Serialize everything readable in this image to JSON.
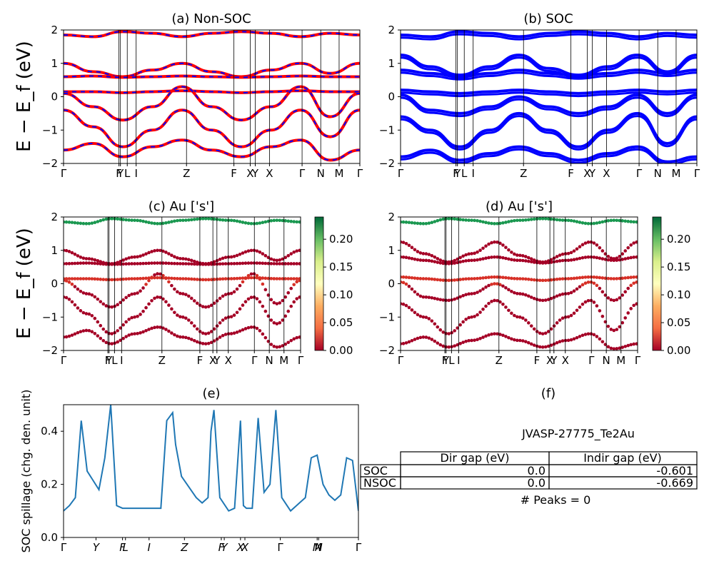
{
  "figure": {
    "material": "JVASP-27775_Te2Au"
  },
  "panels": {
    "a": {
      "title": "(a) Non-SOC"
    },
    "b": {
      "title": "(b) SOC"
    },
    "c": {
      "title": "(c)  Au ['s']"
    },
    "d": {
      "title": "(d) Au ['s']"
    },
    "e": {
      "title": "(e)"
    },
    "f": {
      "title": "(f)"
    }
  },
  "band_ylabel": "E − E_f (eV)",
  "band_yticks": [
    "2",
    "1",
    "0",
    "−1",
    "−2"
  ],
  "kpath_labels": [
    {
      "text": "Γ",
      "pos": 0.0
    },
    {
      "text": "Y",
      "pos": 0.192
    },
    {
      "text": "F",
      "pos": 0.187
    },
    {
      "text": "L",
      "pos": 0.215
    },
    {
      "text": "I",
      "pos": 0.245
    },
    {
      "text": "Z",
      "pos": 0.415
    },
    {
      "text": "F",
      "pos": 0.575
    },
    {
      "text": "X",
      "pos": 0.63
    },
    {
      "text": "Y",
      "pos": 0.647
    },
    {
      "text": "X",
      "pos": 0.695
    },
    {
      "text": "Γ",
      "pos": 0.805
    },
    {
      "text": "N",
      "pos": 0.868
    },
    {
      "text": "M",
      "pos": 0.93
    },
    {
      "text": "Γ",
      "pos": 1.0
    }
  ],
  "colorbar": {
    "ticks": [
      "0.20",
      "0.15",
      "0.10",
      "0.05",
      "0.00"
    ],
    "cmap": [
      "#006837",
      "#66bd63",
      "#d9ef8b",
      "#ffffbf",
      "#fdae61",
      "#f46d43",
      "#a50026"
    ]
  },
  "colors": {
    "nonsoc_line": "#ff0000",
    "nonsoc_dash": "#0000ff",
    "soc_line": "#0000ff",
    "spillage_line": "#1f77b4"
  },
  "spillage": {
    "ylabel": "SOC spillage (chg. den. unit)",
    "yticks": [
      "0.4",
      "0.2",
      "0.0"
    ],
    "xticks": [
      "Γ",
      "Y",
      "F",
      "L",
      "I",
      "Z",
      "F",
      "Y",
      "X",
      "X",
      "Γ",
      "M",
      "N",
      "Γ"
    ]
  },
  "table": {
    "headers": [
      "Dir gap (eV)",
      "Indir gap (eV)"
    ],
    "rows": [
      {
        "label": "SOC",
        "dir": "0.0",
        "indir": "-0.601"
      },
      {
        "label": "NSOC",
        "dir": "0.0",
        "indir": "-0.669"
      }
    ],
    "peaks": "# Peaks = 0"
  },
  "chart_data": [
    {
      "type": "line",
      "title": "(a) Non-SOC",
      "ylabel": "E − E_f (eV)",
      "ylim": [
        -2,
        2
      ],
      "x": [
        0,
        0.1,
        0.2,
        0.3,
        0.4,
        0.5,
        0.6,
        0.7,
        0.8,
        0.9,
        1.0
      ],
      "series": [
        {
          "values": [
            1.0,
            0.75,
            0.6,
            0.8,
            1.0,
            0.75,
            0.6,
            0.8,
            1.0,
            0.7,
            1.0
          ]
        },
        {
          "values": [
            0.6,
            0.62,
            0.58,
            0.6,
            0.62,
            0.6,
            0.58,
            0.6,
            0.62,
            0.6,
            0.6
          ]
        },
        {
          "values": [
            0.15,
            0.15,
            0.12,
            0.15,
            0.18,
            0.15,
            0.12,
            0.15,
            0.18,
            0.15,
            0.15
          ]
        },
        {
          "values": [
            0.1,
            -0.3,
            -0.7,
            -0.3,
            0.3,
            -0.3,
            -0.7,
            -0.3,
            0.3,
            -0.6,
            0.1
          ]
        },
        {
          "values": [
            -0.4,
            -0.9,
            -1.5,
            -1.0,
            -0.4,
            -1.0,
            -1.5,
            -1.0,
            -0.4,
            -1.2,
            -0.4
          ]
        },
        {
          "values": [
            -1.6,
            -1.4,
            -1.8,
            -1.5,
            -1.3,
            -1.6,
            -1.8,
            -1.5,
            -1.3,
            -1.9,
            -1.6
          ]
        },
        {
          "values": [
            1.85,
            1.8,
            1.95,
            1.9,
            1.8,
            1.9,
            1.95,
            1.9,
            1.8,
            1.9,
            1.85
          ]
        }
      ]
    },
    {
      "type": "line",
      "title": "(b) SOC",
      "ylabel": "",
      "ylim": [
        -2,
        2
      ],
      "x": [
        0,
        0.1,
        0.2,
        0.3,
        0.4,
        0.5,
        0.6,
        0.7,
        0.8,
        0.9,
        1.0
      ],
      "series": [
        {
          "values": [
            1.25,
            0.9,
            0.65,
            0.9,
            1.25,
            0.85,
            0.65,
            0.9,
            1.25,
            0.75,
            1.25
          ]
        },
        {
          "values": [
            0.8,
            0.7,
            0.6,
            0.7,
            0.8,
            0.7,
            0.62,
            0.7,
            0.8,
            0.7,
            0.8
          ]
        },
        {
          "values": [
            0.2,
            0.15,
            0.1,
            0.15,
            0.2,
            0.15,
            0.1,
            0.15,
            0.2,
            0.15,
            0.2
          ]
        },
        {
          "values": [
            0.05,
            -0.4,
            -0.5,
            -0.3,
            0.0,
            -0.3,
            -0.5,
            -0.3,
            0.05,
            -0.5,
            0.05
          ]
        },
        {
          "values": [
            -0.6,
            -1.0,
            -1.5,
            -1.0,
            -0.5,
            -1.0,
            -1.5,
            -1.0,
            -0.5,
            -1.4,
            -0.6
          ]
        },
        {
          "values": [
            -1.8,
            -1.6,
            -1.9,
            -1.7,
            -1.5,
            -1.7,
            -1.9,
            -1.7,
            -1.5,
            -1.95,
            -1.8
          ]
        },
        {
          "values": [
            1.85,
            1.8,
            1.95,
            1.9,
            1.8,
            1.9,
            1.95,
            1.9,
            1.8,
            1.9,
            1.85
          ]
        }
      ]
    },
    {
      "type": "scatter",
      "title": "(c)  Au ['s']",
      "ylim": [
        -2,
        2
      ],
      "colorbar_range": [
        0,
        0.24
      ]
    },
    {
      "type": "scatter",
      "title": "(d) Au ['s']",
      "ylim": [
        -2,
        2
      ],
      "colorbar_range": [
        0,
        0.24
      ]
    },
    {
      "type": "line",
      "title": "(e)",
      "ylabel": "SOC spillage (chg. den. unit)",
      "ylim": [
        0,
        0.5
      ],
      "x": [
        0,
        0.02,
        0.04,
        0.06,
        0.08,
        0.12,
        0.14,
        0.16,
        0.18,
        0.2,
        0.25,
        0.3,
        0.33,
        0.35,
        0.37,
        0.38,
        0.4,
        0.45,
        0.47,
        0.49,
        0.5,
        0.51,
        0.53,
        0.56,
        0.58,
        0.6,
        0.61,
        0.62,
        0.64,
        0.66,
        0.68,
        0.7,
        0.72,
        0.74,
        0.77,
        0.79,
        0.8,
        0.82,
        0.84,
        0.86,
        0.88,
        0.9,
        0.92,
        0.94,
        0.96,
        0.98,
        1.0
      ],
      "series": [
        {
          "name": "",
          "values": [
            0.1,
            0.12,
            0.15,
            0.44,
            0.25,
            0.18,
            0.3,
            0.5,
            0.12,
            0.11,
            0.11,
            0.11,
            0.11,
            0.44,
            0.47,
            0.35,
            0.23,
            0.15,
            0.13,
            0.15,
            0.4,
            0.48,
            0.15,
            0.1,
            0.11,
            0.44,
            0.12,
            0.11,
            0.11,
            0.45,
            0.17,
            0.2,
            0.48,
            0.15,
            0.1,
            0.12,
            0.13,
            0.15,
            0.3,
            0.31,
            0.2,
            0.16,
            0.14,
            0.16,
            0.3,
            0.29,
            0.1
          ]
        }
      ]
    }
  ]
}
